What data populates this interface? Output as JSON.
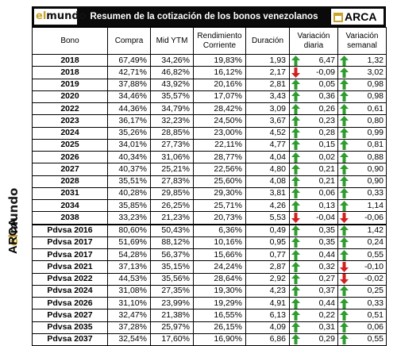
{
  "title": "Resumen de la cotización de los bonos venezolanos",
  "brand": {
    "el": "el",
    "mundo": "mundo",
    "arca": "ARCA"
  },
  "headers": [
    "Bono",
    "Compra",
    "Mid YTM",
    "Rendimiento Corriente",
    "Duración",
    "Variación diaria",
    "Variación semanal"
  ],
  "colors": {
    "up": "#2e9c2e",
    "down": "#d21f1f",
    "title_bg": "#0a0a0a",
    "gold": "#c9a227"
  },
  "rows": [
    {
      "bono": "2018",
      "compra": "67,49%",
      "ytm": "34,26%",
      "rend": "19,83%",
      "dur": "1,93",
      "vd": "6,47",
      "vd_dir": "up",
      "vs": "1,32",
      "vs_dir": "up"
    },
    {
      "bono": "2018",
      "compra": "42,71%",
      "ytm": "46,82%",
      "rend": "16,12%",
      "dur": "2,17",
      "vd": "-0,09",
      "vd_dir": "down",
      "vs": "3,02",
      "vs_dir": "up"
    },
    {
      "bono": "2019",
      "compra": "37,88%",
      "ytm": "43,92%",
      "rend": "20,16%",
      "dur": "2,81",
      "vd": "0,05",
      "vd_dir": "up",
      "vs": "0,98",
      "vs_dir": "up"
    },
    {
      "bono": "2020",
      "compra": "34,46%",
      "ytm": "35,57%",
      "rend": "17,07%",
      "dur": "3,43",
      "vd": "0,36",
      "vd_dir": "up",
      "vs": "0,98",
      "vs_dir": "up"
    },
    {
      "bono": "2022",
      "compra": "44,36%",
      "ytm": "34,79%",
      "rend": "28,42%",
      "dur": "3,09",
      "vd": "0,26",
      "vd_dir": "up",
      "vs": "0,61",
      "vs_dir": "up"
    },
    {
      "bono": "2023",
      "compra": "36,17%",
      "ytm": "32,23%",
      "rend": "24,50%",
      "dur": "3,67",
      "vd": "0,23",
      "vd_dir": "up",
      "vs": "0,80",
      "vs_dir": "up"
    },
    {
      "bono": "2024",
      "compra": "35,26%",
      "ytm": "28,85%",
      "rend": "23,00%",
      "dur": "4,52",
      "vd": "0,28",
      "vd_dir": "up",
      "vs": "0,99",
      "vs_dir": "up"
    },
    {
      "bono": "2025",
      "compra": "34,01%",
      "ytm": "27,73%",
      "rend": "22,11%",
      "dur": "4,77",
      "vd": "0,15",
      "vd_dir": "up",
      "vs": "0,81",
      "vs_dir": "up"
    },
    {
      "bono": "2026",
      "compra": "40,34%",
      "ytm": "31,06%",
      "rend": "28,77%",
      "dur": "4,04",
      "vd": "0,02",
      "vd_dir": "up",
      "vs": "0,88",
      "vs_dir": "up"
    },
    {
      "bono": "2027",
      "compra": "40,37%",
      "ytm": "25,21%",
      "rend": "22,56%",
      "dur": "4,80",
      "vd": "0,21",
      "vd_dir": "up",
      "vs": "0,90",
      "vs_dir": "up"
    },
    {
      "bono": "2028",
      "compra": "35,51%",
      "ytm": "27,83%",
      "rend": "25,60%",
      "dur": "4,08",
      "vd": "0,21",
      "vd_dir": "up",
      "vs": "0,90",
      "vs_dir": "up"
    },
    {
      "bono": "2031",
      "compra": "40,28%",
      "ytm": "29,85%",
      "rend": "29,30%",
      "dur": "3,81",
      "vd": "0,06",
      "vd_dir": "up",
      "vs": "0,33",
      "vs_dir": "up"
    },
    {
      "bono": "2034",
      "compra": "35,85%",
      "ytm": "26,25%",
      "rend": "25,71%",
      "dur": "4,26",
      "vd": "0,13",
      "vd_dir": "up",
      "vs": "1,14",
      "vs_dir": "up"
    },
    {
      "bono": "2038",
      "compra": "33,23%",
      "ytm": "21,23%",
      "rend": "20,73%",
      "dur": "5,53",
      "vd": "-0,04",
      "vd_dir": "down",
      "vs": "-0,06",
      "vs_dir": "down"
    },
    {
      "bono": "Pdvsa 2016",
      "compra": "80,60%",
      "ytm": "50,43%",
      "rend": "6,36%",
      "dur": "0,49",
      "vd": "0,35",
      "vd_dir": "up",
      "vs": "1,42",
      "vs_dir": "up"
    },
    {
      "bono": "Pdvsa 2017",
      "compra": "51,69%",
      "ytm": "88,12%",
      "rend": "10,16%",
      "dur": "0,95",
      "vd": "0,35",
      "vd_dir": "up",
      "vs": "0,24",
      "vs_dir": "up"
    },
    {
      "bono": "Pdvsa 2017",
      "compra": "54,28%",
      "ytm": "56,37%",
      "rend": "15,66%",
      "dur": "0,77",
      "vd": "0,44",
      "vd_dir": "up",
      "vs": "0,55",
      "vs_dir": "up"
    },
    {
      "bono": "Pdvsa 2021",
      "compra": "37,13%",
      "ytm": "35,15%",
      "rend": "24,24%",
      "dur": "2,87",
      "vd": "0,32",
      "vd_dir": "up",
      "vs": "-0,10",
      "vs_dir": "down"
    },
    {
      "bono": "Pdvsa 2022",
      "compra": "44,53%",
      "ytm": "35,56%",
      "rend": "28,64%",
      "dur": "2,92",
      "vd": "0,27",
      "vd_dir": "up",
      "vs": "-0,02",
      "vs_dir": "down"
    },
    {
      "bono": "Pdvsa 2024",
      "compra": "31,08%",
      "ytm": "27,35%",
      "rend": "19,30%",
      "dur": "4,23",
      "vd": "0,37",
      "vd_dir": "up",
      "vs": "0,25",
      "vs_dir": "up"
    },
    {
      "bono": "Pdvsa 2026",
      "compra": "31,10%",
      "ytm": "23,99%",
      "rend": "19,29%",
      "dur": "4,91",
      "vd": "0,44",
      "vd_dir": "up",
      "vs": "0,33",
      "vs_dir": "up"
    },
    {
      "bono": "Pdvsa 2027",
      "compra": "32,47%",
      "ytm": "21,38%",
      "rend": "16,55%",
      "dur": "6,13",
      "vd": "0,22",
      "vd_dir": "up",
      "vs": "0,51",
      "vs_dir": "up"
    },
    {
      "bono": "Pdvsa 2035",
      "compra": "37,28%",
      "ytm": "25,97%",
      "rend": "26,15%",
      "dur": "4,09",
      "vd": "0,31",
      "vd_dir": "up",
      "vs": "0,06",
      "vs_dir": "up"
    },
    {
      "bono": "Pdvsa 2037",
      "compra": "32,54%",
      "ytm": "17,60%",
      "rend": "16,90%",
      "dur": "6,86",
      "vd": "0,29",
      "vd_dir": "up",
      "vs": "0,55",
      "vs_dir": "up"
    }
  ]
}
